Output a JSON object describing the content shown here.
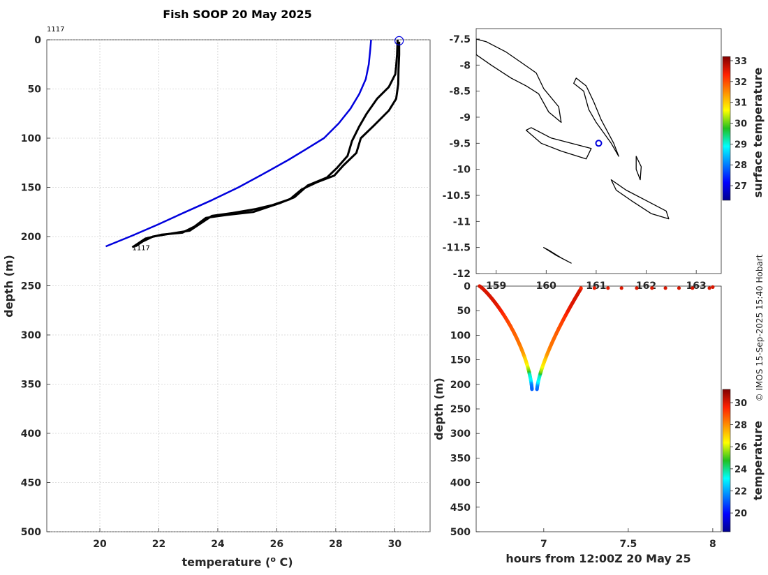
{
  "title": "Fish SOOP 20 May 2025",
  "credit": "© IMOS 15-Sep-2025 15:40 Hobart",
  "colors": {
    "primary_profile": "#0000dd",
    "xbt_profile": "#000000",
    "marker": "#0000dd"
  },
  "chart_data": [
    {
      "type": "line",
      "xlabel": "temperature (o C)",
      "xlabel_main": "temperature (",
      "xlabel_sup": "o",
      "xlabel_end": " C)",
      "ylabel": "depth (m)",
      "xlim": [
        18.2,
        31.2
      ],
      "ylim": [
        0,
        500
      ],
      "y_inverted": true,
      "xticks": [
        "20",
        "22",
        "24",
        "26",
        "28",
        "30"
      ],
      "yticks": [
        "0",
        "50",
        "100",
        "150",
        "200",
        "250",
        "300",
        "350",
        "400",
        "450",
        "500"
      ],
      "grid": true,
      "annotations": [
        {
          "text": "1117",
          "x": 18.2,
          "y": -10
        },
        {
          "text": "1117",
          "x": 21.1,
          "y": 211
        }
      ],
      "surface_marker": {
        "x": 30.15,
        "y": 1
      },
      "series": [
        {
          "color": "#0000dd",
          "points": [
            [
              29.2,
              0
            ],
            [
              29.17,
              10
            ],
            [
              29.12,
              25
            ],
            [
              29.02,
              40
            ],
            [
              28.8,
              55
            ],
            [
              28.5,
              70
            ],
            [
              28.1,
              85
            ],
            [
              27.6,
              100
            ],
            [
              26.95,
              112
            ],
            [
              26.4,
              122
            ],
            [
              25.5,
              137
            ],
            [
              24.7,
              150
            ],
            [
              23.8,
              163
            ],
            [
              22.9,
              175
            ],
            [
              21.95,
              188
            ],
            [
              21.1,
              199
            ],
            [
              20.2,
              210
            ]
          ]
        },
        {
          "color": "#000000",
          "points": [
            [
              30.1,
              0
            ],
            [
              30.08,
              15
            ],
            [
              30.05,
              27
            ],
            [
              30.02,
              35
            ],
            [
              29.8,
              48
            ],
            [
              29.4,
              60
            ],
            [
              29.05,
              75
            ],
            [
              28.8,
              88
            ],
            [
              28.55,
              103
            ],
            [
              28.4,
              118
            ],
            [
              28.05,
              130
            ],
            [
              27.7,
              140
            ],
            [
              27.05,
              148
            ],
            [
              26.6,
              160
            ],
            [
              26.1,
              166
            ],
            [
              25.7,
              170
            ],
            [
              25.2,
              175
            ],
            [
              24.3,
              178
            ],
            [
              23.6,
              181
            ],
            [
              23.2,
              190
            ],
            [
              22.8,
              196
            ],
            [
              22.1,
              198
            ],
            [
              21.55,
              202
            ],
            [
              21.25,
              208
            ],
            [
              21.1,
              211
            ]
          ]
        },
        {
          "color": "#000000",
          "points": [
            [
              30.15,
              2
            ],
            [
              30.15,
              15
            ],
            [
              30.13,
              30
            ],
            [
              30.12,
              45
            ],
            [
              30.05,
              60
            ],
            [
              29.8,
              72
            ],
            [
              29.3,
              87
            ],
            [
              28.85,
              100
            ],
            [
              28.7,
              115
            ],
            [
              28.25,
              128
            ],
            [
              27.95,
              138
            ],
            [
              27.35,
              145
            ],
            [
              26.85,
              152
            ],
            [
              26.45,
              162
            ],
            [
              25.85,
              168
            ],
            [
              25.3,
              172
            ],
            [
              24.5,
              176
            ],
            [
              23.8,
              179
            ],
            [
              23.45,
              186
            ],
            [
              23.05,
              194
            ],
            [
              22.4,
              197
            ],
            [
              21.8,
              200
            ],
            [
              21.45,
              205
            ],
            [
              21.2,
              210
            ]
          ]
        }
      ]
    },
    {
      "type": "map",
      "xlim": [
        158.6,
        163.5
      ],
      "ylim": [
        -12,
        -7.3
      ],
      "xticks": [
        "159",
        "160",
        "161",
        "162",
        "163"
      ],
      "yticks": [
        "-7.5",
        "-8",
        "-8.5",
        "-9",
        "-9.5",
        "-10",
        "-10.5",
        "-11",
        "-11.5",
        "-12"
      ],
      "colorbar_label": "surface temperature",
      "colorbar_ticks": [
        "27",
        "28",
        "29",
        "30",
        "31",
        "32",
        "33"
      ],
      "colorbar_range": [
        26.3,
        33.2
      ],
      "ship_position": {
        "lon": 161.05,
        "lat": -9.5
      },
      "coastlines": [
        {
          "name": "santa-isabel",
          "lonlat": [
            [
              158.6,
              -7.8
            ],
            [
              158.9,
              -8.0
            ],
            [
              159.3,
              -8.25
            ],
            [
              159.6,
              -8.4
            ],
            [
              159.85,
              -8.55
            ],
            [
              160.05,
              -8.9
            ],
            [
              160.3,
              -9.1
            ],
            [
              160.25,
              -8.8
            ],
            [
              159.95,
              -8.45
            ],
            [
              159.8,
              -8.15
            ],
            [
              159.5,
              -7.95
            ],
            [
              159.2,
              -7.75
            ],
            [
              158.8,
              -7.55
            ],
            [
              158.6,
              -7.5
            ]
          ]
        },
        {
          "name": "malaita",
          "lonlat": [
            [
              160.55,
              -8.35
            ],
            [
              160.75,
              -8.5
            ],
            [
              160.85,
              -8.85
            ],
            [
              161.0,
              -9.1
            ],
            [
              161.3,
              -9.5
            ],
            [
              161.45,
              -9.75
            ],
            [
              161.35,
              -9.5
            ],
            [
              161.1,
              -9.05
            ],
            [
              160.95,
              -8.7
            ],
            [
              160.8,
              -8.4
            ],
            [
              160.6,
              -8.25
            ]
          ]
        },
        {
          "name": "guadalcanal",
          "lonlat": [
            [
              159.6,
              -9.25
            ],
            [
              159.9,
              -9.5
            ],
            [
              160.3,
              -9.65
            ],
            [
              160.8,
              -9.8
            ],
            [
              160.9,
              -9.6
            ],
            [
              160.5,
              -9.5
            ],
            [
              160.1,
              -9.4
            ],
            [
              159.7,
              -9.2
            ]
          ]
        },
        {
          "name": "makira",
          "lonlat": [
            [
              161.3,
              -10.2
            ],
            [
              161.6,
              -10.4
            ],
            [
              162.0,
              -10.6
            ],
            [
              162.4,
              -10.8
            ],
            [
              162.45,
              -10.95
            ],
            [
              162.1,
              -10.85
            ],
            [
              161.7,
              -10.6
            ],
            [
              161.4,
              -10.4
            ]
          ]
        },
        {
          "name": "ulawa",
          "lonlat": [
            [
              161.8,
              -9.75
            ],
            [
              161.9,
              -9.95
            ],
            [
              161.88,
              -10.2
            ],
            [
              161.8,
              -10.0
            ]
          ]
        },
        {
          "name": "rennell",
          "lonlat": [
            [
              159.95,
              -11.5
            ],
            [
              160.2,
              -11.65
            ],
            [
              160.5,
              -11.8
            ],
            [
              160.3,
              -11.7
            ],
            [
              160.05,
              -11.55
            ]
          ]
        }
      ]
    },
    {
      "type": "scatter",
      "xlabel": "hours from 12:00Z 20 May 25",
      "ylabel": "depth (m)",
      "xlim": [
        6.6,
        8.05
      ],
      "ylim": [
        0,
        500
      ],
      "y_inverted": true,
      "xticks": [
        "7",
        "7.5",
        "8"
      ],
      "yticks": [
        "0",
        "50",
        "100",
        "150",
        "200",
        "250",
        "300",
        "350",
        "400",
        "450",
        "500"
      ],
      "colorbar_label": "temperature",
      "colorbar_ticks": [
        "20",
        "22",
        "24",
        "26",
        "28",
        "30"
      ],
      "colorbar_range": [
        18.3,
        31.2
      ],
      "descent": {
        "x_start": 6.62,
        "x_end": 6.93,
        "depth_max": 210
      },
      "ascent": {
        "x_start": 6.96,
        "x_end": 7.22,
        "depth_min": 5
      },
      "surface_points": [
        [
          7.22,
          4,
          29.5
        ],
        [
          7.3,
          4,
          29.8
        ],
        [
          7.38,
          4,
          29.9
        ],
        [
          7.46,
          4,
          30.0
        ],
        [
          7.55,
          4,
          30.0
        ],
        [
          7.64,
          4,
          30.0
        ],
        [
          7.72,
          4,
          30.1
        ],
        [
          7.8,
          4,
          30.1
        ],
        [
          7.88,
          4,
          30.1
        ],
        [
          7.98,
          4,
          30.1
        ],
        [
          8.0,
          2,
          30.1
        ]
      ]
    }
  ]
}
